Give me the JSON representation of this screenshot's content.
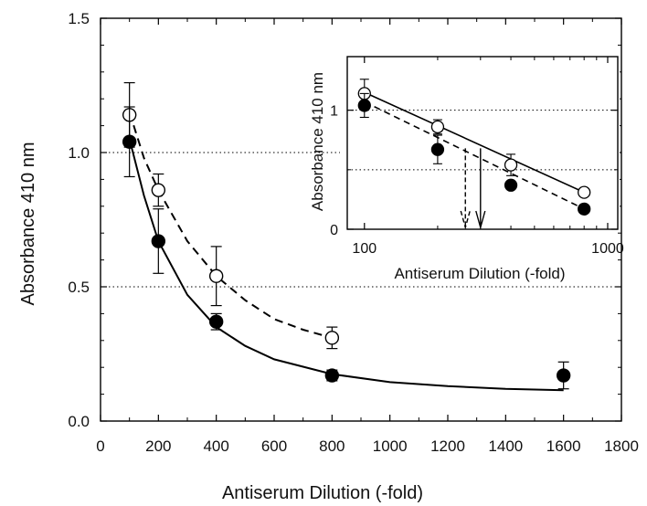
{
  "chart_data": [
    {
      "type": "scatter",
      "xlabel": "Antiserum Dilution (-fold)",
      "ylabel": "Absorbance 410 nm",
      "xlim": [
        0,
        1800
      ],
      "ylim": [
        0,
        1.5
      ],
      "xticks": [
        "0",
        "200",
        "400",
        "600",
        "800",
        "1000",
        "1200",
        "1400",
        "1600",
        "1800"
      ],
      "yticks": [
        "0.0",
        "0.5",
        "1.0",
        "1.5"
      ],
      "reference_lines_y": [
        0.5,
        1.0
      ],
      "series": [
        {
          "marker": "open-circle",
          "line": "dashed",
          "x": [
            100,
            200,
            400,
            800
          ],
          "y": [
            1.14,
            0.86,
            0.54,
            0.31
          ],
          "error": [
            0.12,
            0.06,
            0.11,
            0.04
          ]
        },
        {
          "marker": "filled-circle",
          "line": "solid",
          "x": [
            100,
            200,
            400,
            800,
            1600
          ],
          "y": [
            1.04,
            0.67,
            0.37,
            0.17,
            0.17
          ],
          "error": [
            0.13,
            0.12,
            0.03,
            0.02,
            0.05
          ]
        }
      ],
      "fit_curves": [
        {
          "for_series": "open-circle",
          "x": [
            100,
            150,
            200,
            300,
            400,
            500,
            600,
            700,
            800
          ],
          "y": [
            1.15,
            0.98,
            0.86,
            0.67,
            0.54,
            0.45,
            0.38,
            0.34,
            0.31
          ]
        },
        {
          "for_series": "filled-circle",
          "x": [
            100,
            150,
            200,
            300,
            400,
            500,
            600,
            800,
            1000,
            1200,
            1400,
            1600
          ],
          "y": [
            1.05,
            0.84,
            0.67,
            0.47,
            0.35,
            0.28,
            0.23,
            0.175,
            0.145,
            0.13,
            0.12,
            0.115
          ]
        }
      ]
    },
    {
      "type": "scatter",
      "inset": true,
      "xscale": "log",
      "xlabel": "Antiserum Dilution (-fold)",
      "ylabel": "Absorbance 410 nm",
      "xlim": [
        85,
        1100
      ],
      "ylim": [
        0,
        1.45
      ],
      "xticks": [
        "100",
        "1000"
      ],
      "yticks": [
        "0",
        "1"
      ],
      "reference_lines_y": [
        0.5,
        1.0
      ],
      "series": [
        {
          "marker": "open-circle",
          "line": "solid",
          "x": [
            100,
            200,
            400,
            800
          ],
          "y": [
            1.14,
            0.86,
            0.54,
            0.31
          ],
          "error": [
            0.12,
            0.06,
            0.09,
            0.03
          ]
        },
        {
          "marker": "filled-circle",
          "line": "dashed",
          "x": [
            100,
            200,
            400,
            800
          ],
          "y": [
            1.04,
            0.67,
            0.37,
            0.17
          ],
          "error": [
            0.1,
            0.12,
            0.03,
            0.02
          ]
        }
      ],
      "fit_lines": [
        {
          "for_series": "open-circle",
          "x": [
            100,
            800
          ],
          "y": [
            1.15,
            0.31
          ]
        },
        {
          "for_series": "filled-circle",
          "x": [
            100,
            800
          ],
          "y": [
            1.07,
            0.17
          ]
        }
      ],
      "arrows": [
        {
          "style": "dashed",
          "x": 260,
          "y_from": 0.68,
          "y_to": 0.0
        },
        {
          "style": "solid",
          "x": 300,
          "y_from": 0.68,
          "y_to": 0.0
        }
      ]
    }
  ]
}
